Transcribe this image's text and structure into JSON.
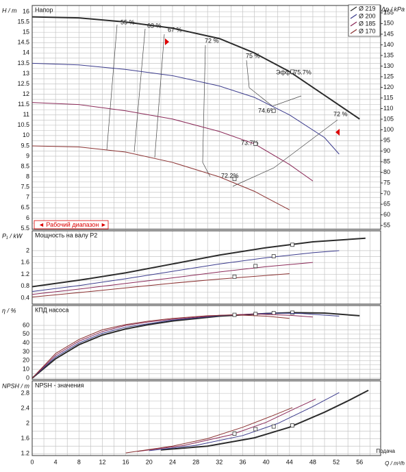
{
  "chart_data": [
    {
      "type": "line",
      "title": "Напор",
      "ylabel": "H / m",
      "y2label": "Δp / kPa",
      "xlim": [
        0,
        59.6
      ],
      "xticks": [
        0,
        4,
        8,
        12,
        16,
        20,
        24,
        28,
        32,
        36,
        40,
        44,
        48,
        52,
        56
      ],
      "ylim": [
        5.45,
        16.3
      ],
      "yticks": [
        5.5,
        6,
        6.5,
        7,
        7.5,
        8,
        8.5,
        9,
        9.5,
        10,
        10.5,
        11,
        11.5,
        12,
        12.5,
        13,
        13.5,
        14,
        14.5,
        15,
        15.5,
        16
      ],
      "y2lim": [
        53.1,
        158.5
      ],
      "y2ticks": [
        55,
        60,
        65,
        70,
        75,
        80,
        85,
        90,
        95,
        100,
        105,
        110,
        115,
        120,
        125,
        130,
        135,
        140,
        145,
        150,
        155
      ],
      "grid": true,
      "legend": "top-right",
      "annotations": [
        "55 %",
        "63 %",
        "67 %",
        "72 %",
        "75 %",
        "Эфф.  75.7%",
        "72 %",
        "74.6%",
        "73.7%",
        "72.2%"
      ],
      "range_label": "◄ Рабочий диапазон ►",
      "series": [
        {
          "name": "Ø 219",
          "color": "#2b2b2b",
          "x": [
            0,
            8,
            16,
            24,
            32,
            38,
            44,
            50,
            56
          ],
          "values": [
            15.75,
            15.7,
            15.5,
            15.2,
            14.7,
            14.0,
            13.1,
            11.95,
            10.8
          ],
          "bep": [
            44.5,
            13.1
          ]
        },
        {
          "name": "Ø 200",
          "color": "#3a3a8c",
          "x": [
            0,
            8,
            16,
            24,
            32,
            38,
            44,
            50,
            52.5
          ],
          "values": [
            13.5,
            13.42,
            13.2,
            12.9,
            12.4,
            11.85,
            11.0,
            9.9,
            9.1
          ],
          "bep": [
            41.3,
            11.2
          ]
        },
        {
          "name": "Ø 185",
          "color": "#8a2857",
          "x": [
            0,
            8,
            16,
            24,
            32,
            38,
            44,
            48
          ],
          "values": [
            11.6,
            11.5,
            11.2,
            10.8,
            10.2,
            9.6,
            8.6,
            7.8
          ],
          "bep": [
            38.2,
            9.6
          ]
        },
        {
          "name": "Ø 170",
          "color": "#8a3030",
          "x": [
            0,
            8,
            16,
            24,
            32,
            38,
            44
          ],
          "values": [
            9.5,
            9.45,
            9.2,
            8.7,
            8.0,
            7.3,
            6.4
          ],
          "bep": [
            34.6,
            7.9
          ]
        }
      ]
    },
    {
      "type": "line",
      "title": "Мощность на валу P2",
      "ylabel": "P₁ / kW",
      "xlim": [
        0,
        59.6
      ],
      "xticks": [
        0,
        4,
        8,
        12,
        16,
        20,
        24,
        28,
        32,
        36,
        40,
        44,
        48,
        52,
        56
      ],
      "ylim": [
        0.19,
        2.67
      ],
      "yticks": [
        0.4,
        0.8,
        1.2,
        1.6,
        2
      ],
      "grid": true,
      "series": [
        {
          "color": "#2b2b2b",
          "x": [
            0,
            8,
            16,
            24,
            32,
            40,
            48,
            57
          ],
          "values": [
            0.78,
            1.0,
            1.25,
            1.55,
            1.85,
            2.1,
            2.3,
            2.42
          ],
          "bep": [
            44.5,
            2.2
          ]
        },
        {
          "color": "#3a3a8c",
          "x": [
            0,
            8,
            16,
            24,
            32,
            40,
            48,
            52.5
          ],
          "values": [
            0.62,
            0.82,
            1.05,
            1.3,
            1.55,
            1.76,
            1.93,
            2.0
          ],
          "bep": [
            41.3,
            1.81
          ]
        },
        {
          "color": "#8a2857",
          "x": [
            0,
            8,
            16,
            24,
            32,
            40,
            48
          ],
          "values": [
            0.52,
            0.7,
            0.89,
            1.08,
            1.28,
            1.46,
            1.6
          ],
          "bep": [
            38.2,
            1.48
          ]
        },
        {
          "color": "#8a3030",
          "x": [
            0,
            8,
            16,
            24,
            32,
            40,
            44
          ],
          "values": [
            0.43,
            0.58,
            0.74,
            0.9,
            1.04,
            1.16,
            1.22
          ],
          "bep": [
            34.6,
            1.12
          ]
        }
      ]
    },
    {
      "type": "line",
      "title": "КПД насоса",
      "ylabel": "η / %",
      "xlim": [
        0,
        59.6
      ],
      "xticks": [
        0,
        4,
        8,
        12,
        16,
        20,
        24,
        28,
        32,
        36,
        40,
        44,
        48,
        52,
        56
      ],
      "ylim": [
        -1.6,
        82.6
      ],
      "yticks": [
        0,
        10,
        20,
        30,
        40,
        50,
        60
      ],
      "grid": true,
      "series": [
        {
          "color": "#2b2b2b",
          "x": [
            0,
            4,
            8,
            12,
            16,
            20,
            24,
            32,
            40,
            44.5,
            50,
            56
          ],
          "values": [
            0,
            22,
            38,
            49,
            56,
            61,
            65,
            70.5,
            73.5,
            74.5,
            74,
            71
          ],
          "bep": [
            44.5,
            74.5
          ]
        },
        {
          "color": "#3a3a8c",
          "x": [
            0,
            4,
            8,
            12,
            16,
            20,
            24,
            32,
            41.3,
            46,
            52.5
          ],
          "values": [
            0,
            24,
            40,
            51,
            58,
            62,
            66,
            71,
            74,
            73.5,
            70.5
          ],
          "bep": [
            41.3,
            74
          ]
        },
        {
          "color": "#8a2857",
          "x": [
            0,
            4,
            8,
            12,
            16,
            20,
            24,
            32,
            38.2,
            44,
            48
          ],
          "values": [
            0,
            26,
            42,
            53,
            60,
            64,
            67,
            71.5,
            73,
            71.5,
            69.5
          ],
          "bep": [
            38.2,
            73
          ]
        },
        {
          "color": "#8a3030",
          "x": [
            0,
            4,
            8,
            12,
            16,
            20,
            24,
            30,
            34.6,
            40,
            44
          ],
          "values": [
            0,
            28,
            44,
            55,
            61,
            65,
            68,
            71,
            72,
            70.5,
            68
          ],
          "bep": [
            34.6,
            72
          ]
        }
      ]
    },
    {
      "type": "line",
      "title": "NPSH - значения",
      "ylabel": "NPSH / m",
      "xlabel": "Q / m³/h",
      "xlabel2": "Подача",
      "xlim": [
        0,
        59.6
      ],
      "xticks": [
        0,
        4,
        8,
        12,
        16,
        20,
        24,
        28,
        32,
        36,
        40,
        44,
        48,
        52,
        56
      ],
      "ylim": [
        1.15,
        3.13
      ],
      "yticks": [
        1.2,
        1.6,
        2,
        2.4,
        2.8
      ],
      "grid": true,
      "series": [
        {
          "color": "#2b2b2b",
          "x": [
            22,
            30,
            38,
            44,
            50,
            54,
            57.5
          ],
          "values": [
            1.3,
            1.4,
            1.62,
            1.9,
            2.3,
            2.6,
            2.88
          ],
          "bep": [
            44.5,
            1.95
          ]
        },
        {
          "color": "#3a3a8c",
          "x": [
            20,
            28,
            36,
            42,
            48,
            52.5
          ],
          "values": [
            1.28,
            1.42,
            1.68,
            2.0,
            2.45,
            2.82
          ],
          "bep": [
            41.3,
            1.92
          ]
        },
        {
          "color": "#8a2857",
          "x": [
            18,
            26,
            34,
            40,
            45,
            48.5
          ],
          "values": [
            1.26,
            1.42,
            1.7,
            2.03,
            2.4,
            2.65
          ],
          "bep": [
            38.2,
            1.85
          ]
        },
        {
          "color": "#8a3030",
          "x": [
            16,
            24,
            30,
            36,
            41,
            44.5
          ],
          "values": [
            1.22,
            1.4,
            1.6,
            1.9,
            2.2,
            2.42
          ],
          "bep": [
            34.6,
            1.73
          ]
        }
      ]
    }
  ]
}
